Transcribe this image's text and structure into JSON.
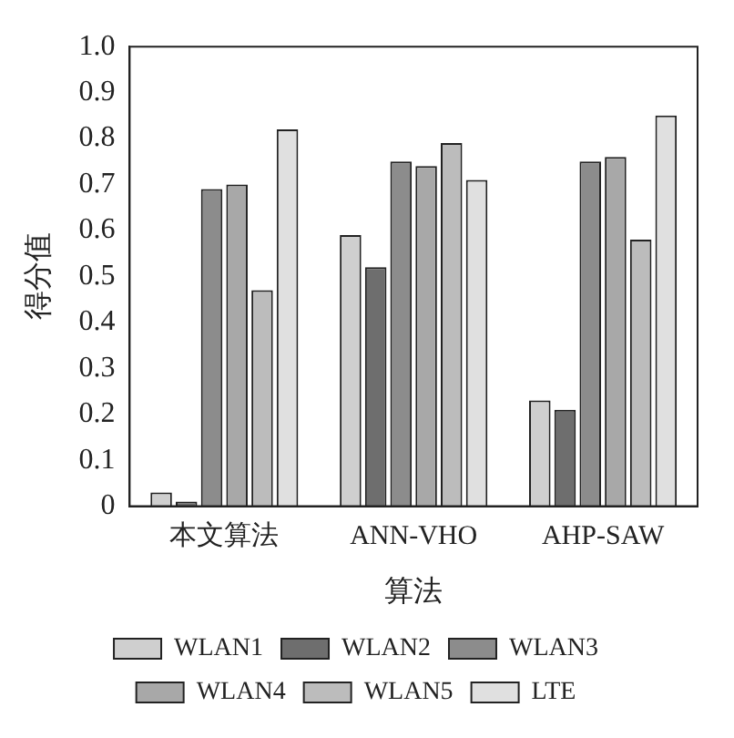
{
  "chart_data": {
    "type": "bar",
    "xlabel": "算法",
    "ylabel": "得分值",
    "categories": [
      "本文算法",
      "ANN-VHO",
      "AHP-SAW"
    ],
    "series": [
      {
        "name": "WLAN1",
        "color": "#cfcfcf",
        "values": [
          0.03,
          0.59,
          0.23
        ]
      },
      {
        "name": "WLAN2",
        "color": "#6e6e6e",
        "values": [
          0.01,
          0.52,
          0.21
        ]
      },
      {
        "name": "WLAN3",
        "color": "#8c8c8c",
        "values": [
          0.69,
          0.75,
          0.75
        ]
      },
      {
        "name": "WLAN4",
        "color": "#a8a8a8",
        "values": [
          0.7,
          0.74,
          0.76
        ]
      },
      {
        "name": "WLAN5",
        "color": "#bcbcbc",
        "values": [
          0.47,
          0.79,
          0.58
        ]
      },
      {
        "name": "LTE",
        "color": "#e0e0e0",
        "values": [
          0.82,
          0.71,
          0.85
        ]
      }
    ],
    "ylim": [
      0,
      1
    ],
    "yticks": [
      0,
      0.1,
      0.2,
      0.3,
      0.4,
      0.5,
      0.6,
      0.7,
      0.8,
      0.9,
      {
        "value": 1,
        "label": "1.0"
      }
    ],
    "grid": false,
    "legend": "bottom"
  }
}
